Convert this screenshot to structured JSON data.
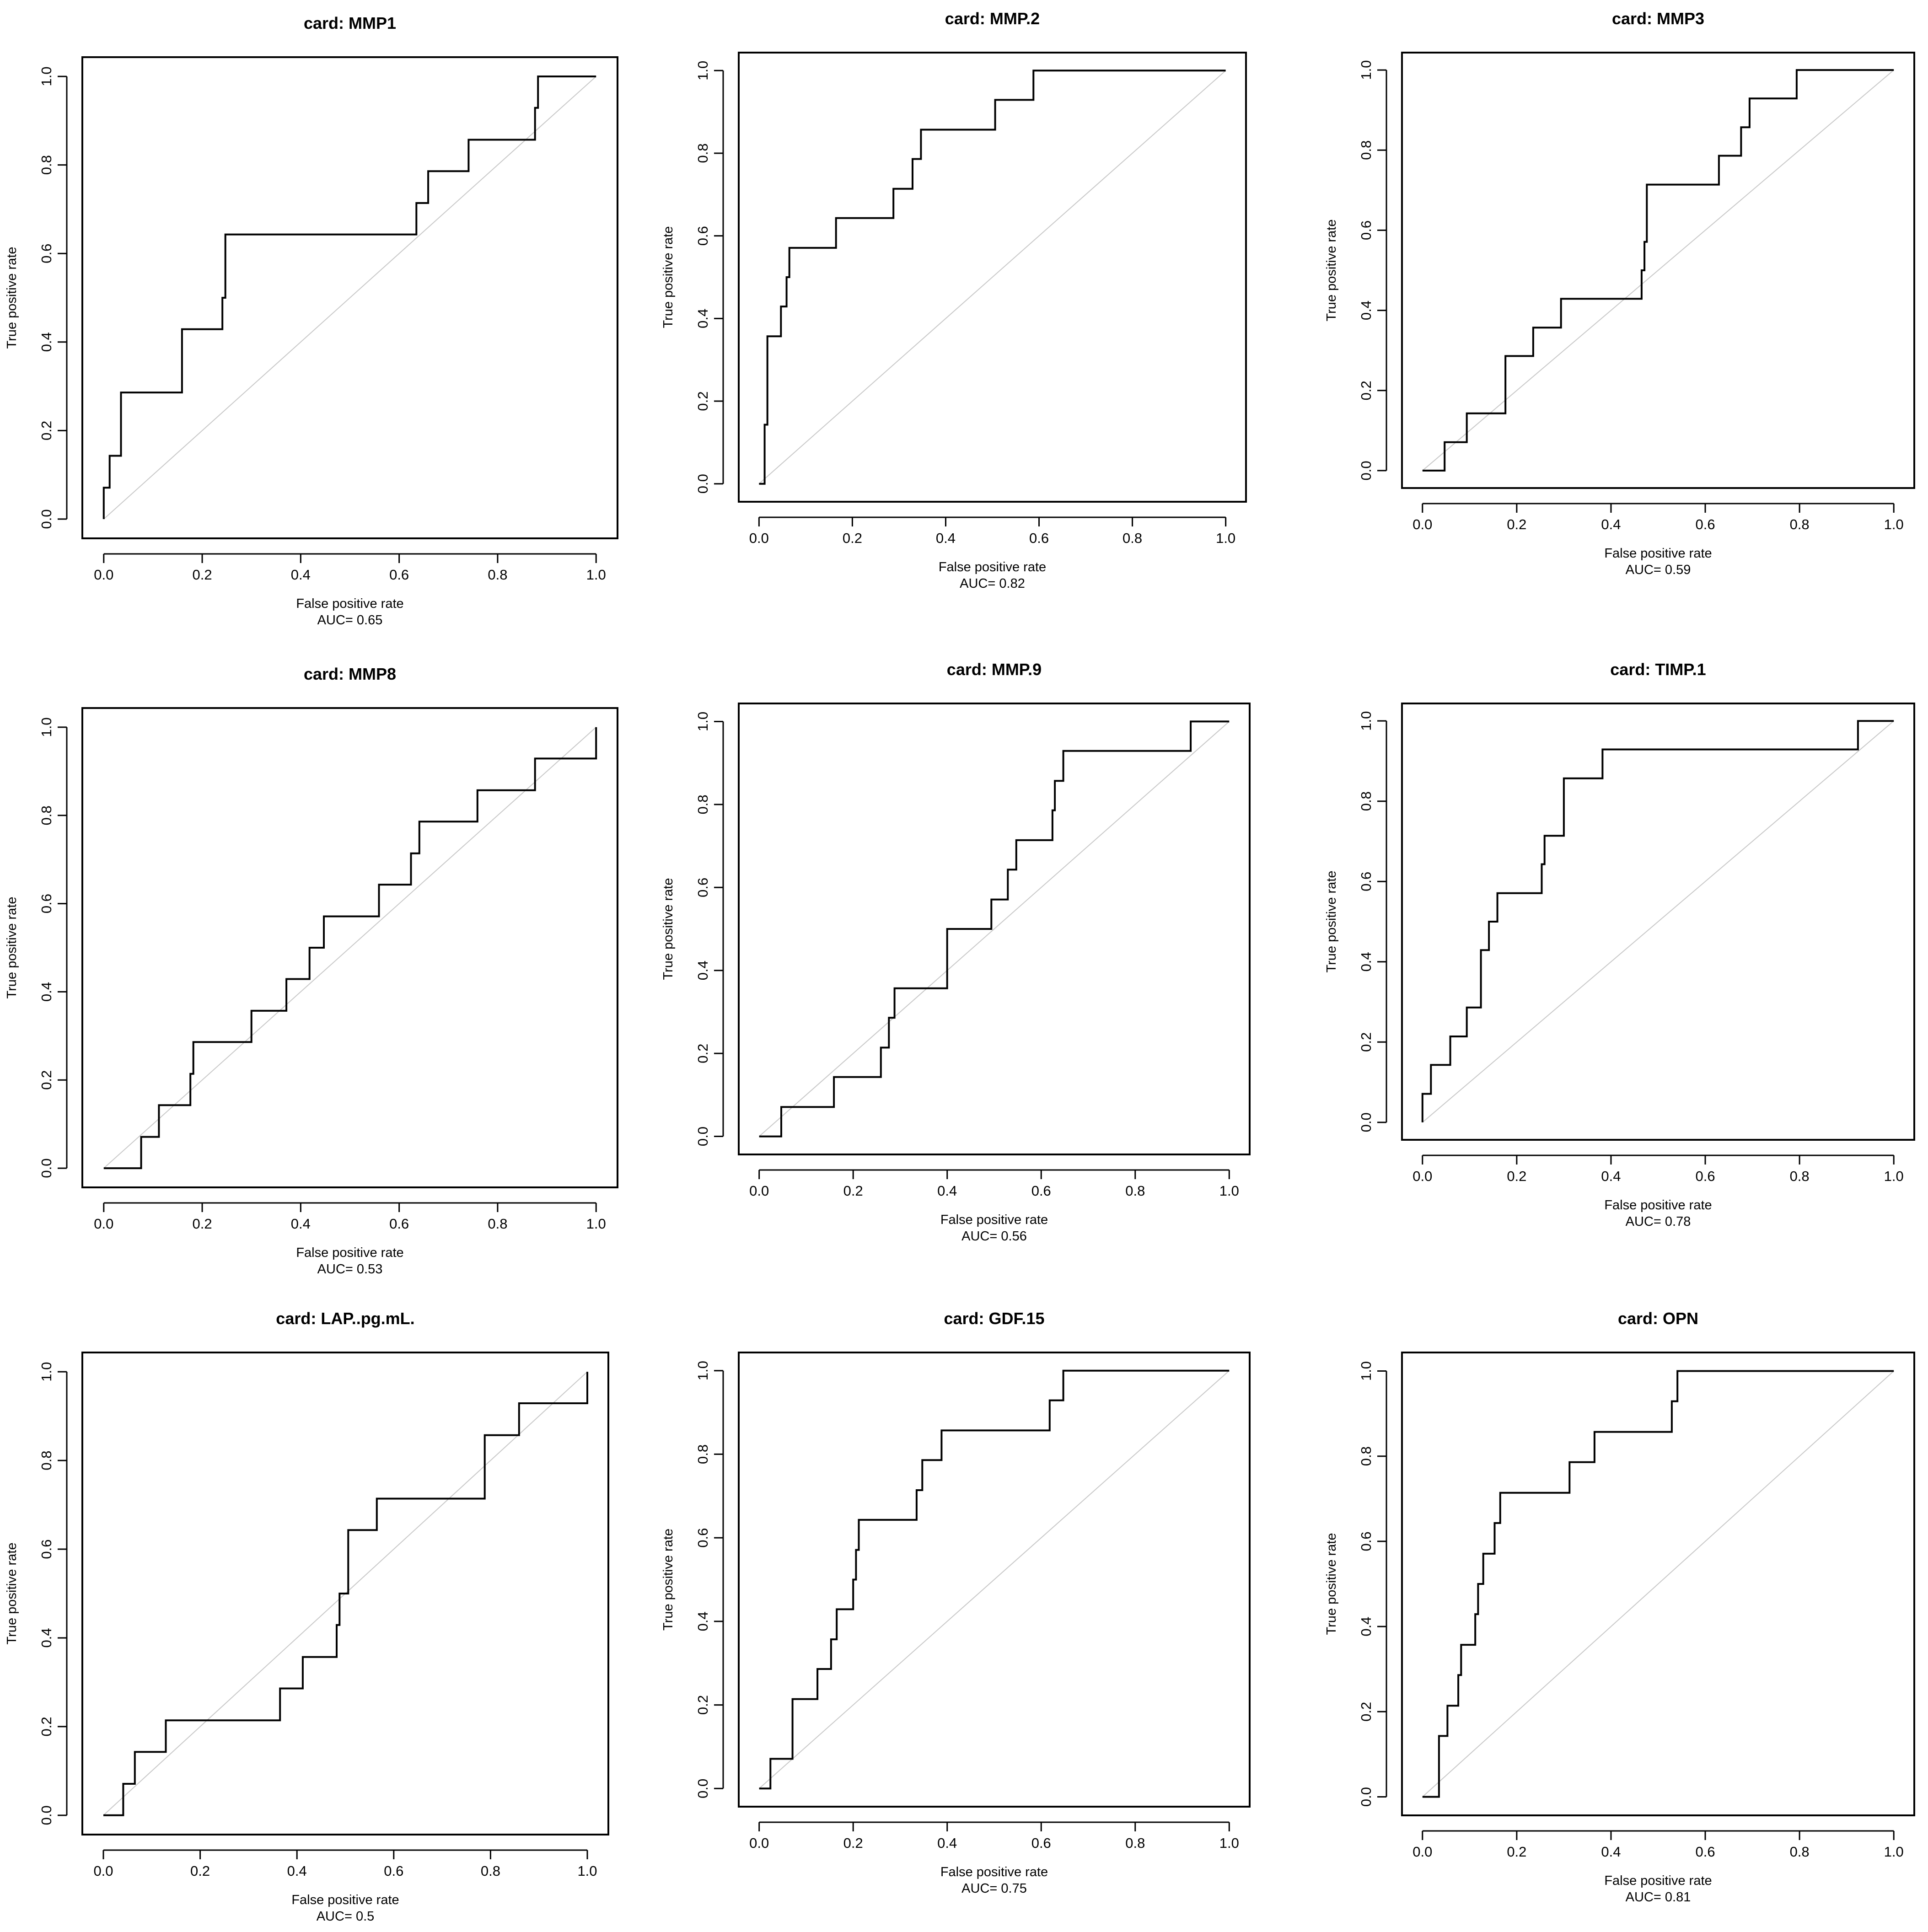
{
  "chart_data": [
    {
      "type": "line",
      "title": "card: MMP1",
      "xlabel": "False positive rate",
      "ylabel": "True positive rate",
      "auc_label": "AUC= 0.65",
      "xlim": [
        0,
        1
      ],
      "ylim": [
        0,
        1
      ],
      "xticks": [
        "0.0",
        "0.2",
        "0.4",
        "0.6",
        "0.8",
        "1.0"
      ],
      "yticks": [
        "0.0",
        "0.2",
        "0.4",
        "0.6",
        "0.8",
        "1.0"
      ],
      "points": [
        [
          0,
          0
        ],
        [
          0,
          0.071
        ],
        [
          0.012,
          0.071
        ],
        [
          0.012,
          0.143
        ],
        [
          0.035,
          0.143
        ],
        [
          0.035,
          0.286
        ],
        [
          0.159,
          0.286
        ],
        [
          0.159,
          0.429
        ],
        [
          0.241,
          0.429
        ],
        [
          0.241,
          0.5
        ],
        [
          0.247,
          0.5
        ],
        [
          0.247,
          0.643
        ],
        [
          0.635,
          0.643
        ],
        [
          0.635,
          0.714
        ],
        [
          0.659,
          0.714
        ],
        [
          0.659,
          0.786
        ],
        [
          0.741,
          0.786
        ],
        [
          0.741,
          0.857
        ],
        [
          0.876,
          0.857
        ],
        [
          0.876,
          0.929
        ],
        [
          0.882,
          0.929
        ],
        [
          0.882,
          1
        ],
        [
          1,
          1
        ]
      ]
    },
    {
      "type": "line",
      "title": "card: MMP.2",
      "xlabel": "False positive rate",
      "ylabel": "True positive rate",
      "auc_label": "AUC= 0.82",
      "xlim": [
        0,
        1
      ],
      "ylim": [
        0,
        1
      ],
      "xticks": [
        "0.0",
        "0.2",
        "0.4",
        "0.6",
        "0.8",
        "1.0"
      ],
      "yticks": [
        "0.0",
        "0.2",
        "0.4",
        "0.6",
        "0.8",
        "1.0"
      ],
      "points": [
        [
          0,
          0
        ],
        [
          0.012,
          0
        ],
        [
          0.012,
          0.143
        ],
        [
          0.018,
          0.143
        ],
        [
          0.018,
          0.357
        ],
        [
          0.047,
          0.357
        ],
        [
          0.047,
          0.429
        ],
        [
          0.059,
          0.429
        ],
        [
          0.059,
          0.5
        ],
        [
          0.065,
          0.5
        ],
        [
          0.065,
          0.571
        ],
        [
          0.165,
          0.571
        ],
        [
          0.165,
          0.643
        ],
        [
          0.288,
          0.643
        ],
        [
          0.288,
          0.714
        ],
        [
          0.329,
          0.714
        ],
        [
          0.329,
          0.786
        ],
        [
          0.347,
          0.786
        ],
        [
          0.347,
          0.857
        ],
        [
          0.506,
          0.857
        ],
        [
          0.506,
          0.929
        ],
        [
          0.588,
          0.929
        ],
        [
          0.588,
          1
        ],
        [
          1,
          1
        ]
      ]
    },
    {
      "type": "line",
      "title": "card: MMP3",
      "xlabel": "False positive rate",
      "ylabel": "True positive rate",
      "auc_label": "AUC= 0.59",
      "xlim": [
        0,
        1
      ],
      "ylim": [
        0,
        1
      ],
      "xticks": [
        "0.0",
        "0.2",
        "0.4",
        "0.6",
        "0.8",
        "1.0"
      ],
      "yticks": [
        "0.0",
        "0.2",
        "0.4",
        "0.6",
        "0.8",
        "1.0"
      ],
      "points": [
        [
          0,
          0
        ],
        [
          0.047,
          0
        ],
        [
          0.047,
          0.071
        ],
        [
          0.094,
          0.071
        ],
        [
          0.094,
          0.143
        ],
        [
          0.176,
          0.143
        ],
        [
          0.176,
          0.286
        ],
        [
          0.235,
          0.286
        ],
        [
          0.235,
          0.357
        ],
        [
          0.294,
          0.357
        ],
        [
          0.294,
          0.429
        ],
        [
          0.465,
          0.429
        ],
        [
          0.465,
          0.5
        ],
        [
          0.471,
          0.5
        ],
        [
          0.471,
          0.571
        ],
        [
          0.476,
          0.571
        ],
        [
          0.476,
          0.714
        ],
        [
          0.629,
          0.714
        ],
        [
          0.629,
          0.786
        ],
        [
          0.676,
          0.786
        ],
        [
          0.676,
          0.857
        ],
        [
          0.694,
          0.857
        ],
        [
          0.694,
          0.929
        ],
        [
          0.794,
          0.929
        ],
        [
          0.794,
          1
        ],
        [
          1,
          1
        ]
      ]
    },
    {
      "type": "line",
      "title": "card: MMP8",
      "xlabel": "False positive rate",
      "ylabel": "True positive rate",
      "auc_label": "AUC= 0.53",
      "xlim": [
        0,
        1
      ],
      "ylim": [
        0,
        1
      ],
      "xticks": [
        "0.0",
        "0.2",
        "0.4",
        "0.6",
        "0.8",
        "1.0"
      ],
      "yticks": [
        "0.0",
        "0.2",
        "0.4",
        "0.6",
        "0.8",
        "1.0"
      ],
      "points": [
        [
          0,
          0
        ],
        [
          0.076,
          0
        ],
        [
          0.076,
          0.071
        ],
        [
          0.112,
          0.071
        ],
        [
          0.112,
          0.143
        ],
        [
          0.176,
          0.143
        ],
        [
          0.176,
          0.214
        ],
        [
          0.182,
          0.214
        ],
        [
          0.182,
          0.286
        ],
        [
          0.3,
          0.286
        ],
        [
          0.3,
          0.357
        ],
        [
          0.371,
          0.357
        ],
        [
          0.371,
          0.429
        ],
        [
          0.418,
          0.429
        ],
        [
          0.418,
          0.5
        ],
        [
          0.447,
          0.5
        ],
        [
          0.447,
          0.571
        ],
        [
          0.559,
          0.571
        ],
        [
          0.559,
          0.643
        ],
        [
          0.624,
          0.643
        ],
        [
          0.624,
          0.714
        ],
        [
          0.641,
          0.714
        ],
        [
          0.641,
          0.786
        ],
        [
          0.759,
          0.786
        ],
        [
          0.759,
          0.857
        ],
        [
          0.876,
          0.857
        ],
        [
          0.876,
          0.929
        ],
        [
          1,
          0.929
        ],
        [
          1,
          1
        ]
      ]
    },
    {
      "type": "line",
      "title": "card: MMP.9",
      "xlabel": "False positive rate",
      "ylabel": "True positive rate",
      "auc_label": "AUC= 0.56",
      "xlim": [
        0,
        1
      ],
      "ylim": [
        0,
        1
      ],
      "xticks": [
        "0.0",
        "0.2",
        "0.4",
        "0.6",
        "0.8",
        "1.0"
      ],
      "yticks": [
        "0.0",
        "0.2",
        "0.4",
        "0.6",
        "0.8",
        "1.0"
      ],
      "points": [
        [
          0,
          0
        ],
        [
          0.047,
          0
        ],
        [
          0.047,
          0.071
        ],
        [
          0.159,
          0.071
        ],
        [
          0.159,
          0.143
        ],
        [
          0.259,
          0.143
        ],
        [
          0.259,
          0.214
        ],
        [
          0.276,
          0.214
        ],
        [
          0.276,
          0.286
        ],
        [
          0.288,
          0.286
        ],
        [
          0.288,
          0.357
        ],
        [
          0.4,
          0.357
        ],
        [
          0.4,
          0.5
        ],
        [
          0.494,
          0.5
        ],
        [
          0.494,
          0.571
        ],
        [
          0.529,
          0.571
        ],
        [
          0.529,
          0.643
        ],
        [
          0.547,
          0.643
        ],
        [
          0.547,
          0.714
        ],
        [
          0.624,
          0.714
        ],
        [
          0.624,
          0.786
        ],
        [
          0.629,
          0.786
        ],
        [
          0.629,
          0.857
        ],
        [
          0.647,
          0.857
        ],
        [
          0.647,
          0.929
        ],
        [
          0.918,
          0.929
        ],
        [
          0.918,
          1
        ],
        [
          1,
          1
        ]
      ]
    },
    {
      "type": "line",
      "title": "card: TIMP.1",
      "xlabel": "False positive rate",
      "ylabel": "True positive rate",
      "auc_label": "AUC= 0.78",
      "xlim": [
        0,
        1
      ],
      "ylim": [
        0,
        1
      ],
      "xticks": [
        "0.0",
        "0.2",
        "0.4",
        "0.6",
        "0.8",
        "1.0"
      ],
      "yticks": [
        "0.0",
        "0.2",
        "0.4",
        "0.6",
        "0.8",
        "1.0"
      ],
      "points": [
        [
          0,
          0
        ],
        [
          0,
          0.071
        ],
        [
          0.018,
          0.071
        ],
        [
          0.018,
          0.143
        ],
        [
          0.059,
          0.143
        ],
        [
          0.059,
          0.214
        ],
        [
          0.094,
          0.214
        ],
        [
          0.094,
          0.286
        ],
        [
          0.124,
          0.286
        ],
        [
          0.124,
          0.429
        ],
        [
          0.141,
          0.429
        ],
        [
          0.141,
          0.5
        ],
        [
          0.159,
          0.5
        ],
        [
          0.159,
          0.571
        ],
        [
          0.253,
          0.571
        ],
        [
          0.253,
          0.643
        ],
        [
          0.259,
          0.643
        ],
        [
          0.259,
          0.714
        ],
        [
          0.3,
          0.714
        ],
        [
          0.3,
          0.857
        ],
        [
          0.382,
          0.857
        ],
        [
          0.382,
          0.929
        ],
        [
          0.924,
          0.929
        ],
        [
          0.924,
          1
        ],
        [
          1,
          1
        ]
      ]
    },
    {
      "type": "line",
      "title": "card: LAP..pg.mL.",
      "xlabel": "False positive rate",
      "ylabel": "True positive rate",
      "auc_label": "AUC= 0.5",
      "xlim": [
        0,
        1
      ],
      "ylim": [
        0,
        1
      ],
      "xticks": [
        "0.0",
        "0.2",
        "0.4",
        "0.6",
        "0.8",
        "1.0"
      ],
      "yticks": [
        "0.0",
        "0.2",
        "0.4",
        "0.6",
        "0.8",
        "1.0"
      ],
      "points": [
        [
          0,
          0
        ],
        [
          0.041,
          0
        ],
        [
          0.041,
          0.071
        ],
        [
          0.065,
          0.071
        ],
        [
          0.065,
          0.143
        ],
        [
          0.129,
          0.143
        ],
        [
          0.129,
          0.214
        ],
        [
          0.365,
          0.214
        ],
        [
          0.365,
          0.286
        ],
        [
          0.412,
          0.286
        ],
        [
          0.412,
          0.357
        ],
        [
          0.482,
          0.357
        ],
        [
          0.482,
          0.429
        ],
        [
          0.488,
          0.429
        ],
        [
          0.488,
          0.5
        ],
        [
          0.506,
          0.5
        ],
        [
          0.506,
          0.643
        ],
        [
          0.565,
          0.643
        ],
        [
          0.565,
          0.714
        ],
        [
          0.788,
          0.714
        ],
        [
          0.788,
          0.857
        ],
        [
          0.859,
          0.857
        ],
        [
          0.859,
          0.929
        ],
        [
          1,
          0.929
        ],
        [
          1,
          1
        ]
      ]
    },
    {
      "type": "line",
      "title": "card: GDF.15",
      "xlabel": "False positive rate",
      "ylabel": "True positive rate",
      "auc_label": "AUC= 0.75",
      "xlim": [
        0,
        1
      ],
      "ylim": [
        0,
        1
      ],
      "xticks": [
        "0.0",
        "0.2",
        "0.4",
        "0.6",
        "0.8",
        "1.0"
      ],
      "yticks": [
        "0.0",
        "0.2",
        "0.4",
        "0.6",
        "0.8",
        "1.0"
      ],
      "points": [
        [
          0,
          0
        ],
        [
          0.024,
          0
        ],
        [
          0.024,
          0.071
        ],
        [
          0.071,
          0.071
        ],
        [
          0.071,
          0.214
        ],
        [
          0.124,
          0.214
        ],
        [
          0.124,
          0.286
        ],
        [
          0.153,
          0.286
        ],
        [
          0.153,
          0.357
        ],
        [
          0.165,
          0.357
        ],
        [
          0.165,
          0.429
        ],
        [
          0.2,
          0.429
        ],
        [
          0.2,
          0.5
        ],
        [
          0.206,
          0.5
        ],
        [
          0.206,
          0.571
        ],
        [
          0.212,
          0.571
        ],
        [
          0.212,
          0.643
        ],
        [
          0.335,
          0.643
        ],
        [
          0.335,
          0.714
        ],
        [
          0.347,
          0.714
        ],
        [
          0.347,
          0.786
        ],
        [
          0.388,
          0.786
        ],
        [
          0.388,
          0.857
        ],
        [
          0.618,
          0.857
        ],
        [
          0.618,
          0.929
        ],
        [
          0.647,
          0.929
        ],
        [
          0.647,
          1
        ],
        [
          1,
          1
        ]
      ]
    },
    {
      "type": "line",
      "title": "card: OPN",
      "xlabel": "False positive rate",
      "ylabel": "True positive rate",
      "auc_label": "AUC= 0.81",
      "xlim": [
        0,
        1
      ],
      "ylim": [
        0,
        1
      ],
      "xticks": [
        "0.0",
        "0.2",
        "0.4",
        "0.6",
        "0.8",
        "1.0"
      ],
      "yticks": [
        "0.0",
        "0.2",
        "0.4",
        "0.6",
        "0.8",
        "1.0"
      ],
      "points": [
        [
          0,
          0
        ],
        [
          0.035,
          0
        ],
        [
          0.035,
          0.143
        ],
        [
          0.053,
          0.143
        ],
        [
          0.053,
          0.214
        ],
        [
          0.076,
          0.214
        ],
        [
          0.076,
          0.286
        ],
        [
          0.082,
          0.286
        ],
        [
          0.082,
          0.357
        ],
        [
          0.112,
          0.357
        ],
        [
          0.112,
          0.429
        ],
        [
          0.118,
          0.429
        ],
        [
          0.118,
          0.5
        ],
        [
          0.129,
          0.5
        ],
        [
          0.129,
          0.571
        ],
        [
          0.153,
          0.571
        ],
        [
          0.153,
          0.643
        ],
        [
          0.165,
          0.643
        ],
        [
          0.165,
          0.714
        ],
        [
          0.312,
          0.714
        ],
        [
          0.312,
          0.786
        ],
        [
          0.365,
          0.786
        ],
        [
          0.365,
          0.857
        ],
        [
          0.529,
          0.857
        ],
        [
          0.529,
          0.929
        ],
        [
          0.541,
          0.929
        ],
        [
          0.541,
          1
        ],
        [
          1,
          1
        ]
      ]
    }
  ]
}
